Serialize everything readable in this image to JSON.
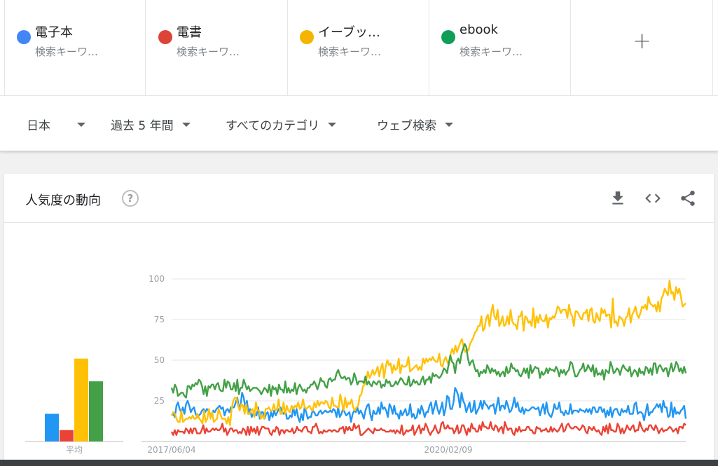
{
  "terms": [
    {
      "name": "電子本",
      "sub": "検索キーワ…",
      "color": "#4285f4"
    },
    {
      "name": "電書",
      "sub": "検索キーワ…",
      "color": "#db4437"
    },
    {
      "name": "イーブッ…",
      "sub": "検索キーワ…",
      "color": "#f4b400"
    },
    {
      "name": "ebook",
      "sub": "検索キーワ…",
      "color": "#0f9d58"
    }
  ],
  "add_term": {
    "icon": "plus-icon",
    "label": "+"
  },
  "filters": {
    "region": "日本",
    "period": "過去 5 年間",
    "category": "すべてのカテゴリ",
    "search_type": "ウェブ検索"
  },
  "card": {
    "title": "人気度の動向",
    "help_label": "?",
    "tools": [
      "download-icon",
      "embed-code-icon",
      "share-icon"
    ]
  },
  "chart_data": {
    "type": "line",
    "x_tick_labels": [
      "2017/06/04",
      "2020/02/09"
    ],
    "y_ticks": [
      25,
      50,
      75,
      100
    ],
    "ylim": [
      0,
      100
    ],
    "grid": true,
    "averages_label": "平均",
    "series": [
      {
        "name": "電子本",
        "color": "#2196f3",
        "average": 17,
        "values": [
          16,
          17,
          15,
          22,
          24,
          20,
          18,
          21,
          17,
          23,
          25,
          22,
          18,
          20,
          21,
          17,
          15,
          16,
          17,
          19,
          20,
          18,
          20,
          19,
          17,
          16,
          19,
          18,
          20,
          21,
          22,
          20,
          21,
          16,
          19,
          20,
          18,
          21,
          21,
          21,
          24,
          27,
          21,
          22,
          30,
          27,
          21,
          25,
          17,
          20,
          15,
          17,
          17,
          16,
          21,
          14,
          18,
          18,
          14,
          17,
          18,
          13,
          18,
          15,
          19,
          16,
          18,
          20,
          21,
          18,
          17,
          19,
          14,
          14,
          16,
          15,
          21,
          16,
          20,
          15,
          12,
          17,
          13,
          21,
          18,
          14,
          15,
          15,
          19,
          18,
          16,
          16,
          18,
          19,
          17,
          18,
          19,
          18,
          18,
          19,
          18,
          20,
          19,
          15,
          21,
          15,
          17,
          20,
          18,
          16,
          17,
          18,
          12,
          17,
          19,
          18,
          21,
          17,
          19,
          17,
          14,
          19,
          22,
          23,
          17,
          13,
          19,
          17,
          17,
          21,
          17,
          24,
          20,
          21,
          19,
          15,
          23,
          21,
          17,
          22,
          17,
          17,
          14,
          19,
          16,
          18,
          20,
          16,
          17,
          23,
          15,
          17,
          14,
          15,
          20,
          17,
          22,
          19,
          15,
          18,
          18,
          22,
          24,
          17,
          21,
          25,
          20,
          17,
          20,
          24,
          16,
          20,
          28,
          27,
          20,
          20,
          24,
          33,
          31,
          28,
          21,
          30,
          25,
          23,
          18,
          21,
          24,
          18,
          19,
          25,
          17,
          19,
          21,
          25,
          20,
          25,
          23,
          22,
          20,
          22,
          22,
          23,
          17,
          22,
          27,
          19,
          22,
          22,
          20,
          25,
          22,
          18,
          19,
          22,
          27,
          21,
          24,
          19,
          18,
          21,
          17,
          20,
          19,
          19,
          20,
          21,
          21,
          20,
          20,
          21,
          16,
          20,
          23,
          17,
          24,
          18,
          16,
          15,
          18,
          23,
          20,
          20,
          24,
          18,
          18,
          16,
          19,
          17,
          17,
          23,
          17,
          19,
          19,
          19,
          18,
          20,
          19,
          19,
          18,
          20,
          18,
          20,
          17,
          21,
          21,
          18,
          18,
          21,
          21,
          18,
          20,
          15,
          19,
          16,
          21,
          15,
          19,
          20,
          20,
          17,
          16,
          20,
          18,
          19,
          18,
          22,
          17,
          17,
          17,
          23,
          24,
          17,
          18,
          18,
          17,
          13,
          18,
          23,
          16,
          18,
          18,
          20,
          21,
          23,
          21,
          23,
          18,
          25,
          21,
          21,
          15,
          16,
          24,
          15,
          21,
          17,
          18,
          17,
          19,
          20,
          22,
          14
        ]
      },
      {
        "name": "電書",
        "color": "#ea4335",
        "average": 7,
        "values": [
          6,
          4,
          7,
          4,
          7,
          6,
          6,
          6,
          5,
          8,
          7,
          5,
          8,
          5,
          8,
          8,
          5,
          5,
          5,
          7,
          10,
          5,
          8,
          6,
          6,
          7,
          8,
          7,
          8,
          7,
          7,
          8,
          11,
          6,
          8,
          4,
          6,
          8,
          8,
          6,
          7,
          7,
          5,
          6,
          5,
          8,
          7,
          4,
          9,
          4,
          9,
          6,
          8,
          5,
          9,
          4,
          7,
          9,
          9,
          8,
          8,
          8,
          5,
          4,
          7,
          6,
          9,
          8,
          4,
          7,
          7,
          5,
          7,
          7,
          6,
          6,
          8,
          5,
          6,
          9,
          7,
          7,
          6,
          8,
          9,
          9,
          6,
          6,
          5,
          9,
          9,
          11,
          8,
          5,
          6,
          5,
          7,
          6,
          6,
          7,
          7,
          6,
          7,
          7,
          6,
          6,
          8,
          8,
          9,
          5,
          9,
          7,
          9,
          7,
          7,
          11,
          8,
          9,
          10,
          4,
          4,
          5,
          6,
          7,
          8,
          7,
          6,
          5,
          8,
          7,
          7,
          7,
          8,
          7,
          7,
          6,
          6,
          6,
          7,
          6,
          7,
          5,
          7,
          6,
          5,
          10,
          4,
          5,
          7,
          6,
          7,
          7,
          10,
          4,
          6,
          8,
          10,
          5,
          8,
          7,
          11,
          9,
          6,
          4,
          6,
          7,
          10,
          7,
          5,
          6,
          11,
          12,
          8,
          8,
          10,
          8,
          8,
          8,
          5,
          7,
          10,
          5,
          6,
          10,
          10,
          7,
          4,
          8,
          6,
          11,
          8,
          8,
          6,
          6,
          10,
          7,
          12,
          9,
          9,
          8,
          8,
          12,
          8,
          7,
          10,
          9,
          6,
          8,
          9,
          5,
          12,
          9,
          7,
          8,
          8,
          5,
          4,
          8,
          6,
          9,
          6,
          7,
          7,
          7,
          9,
          9,
          7,
          7,
          5,
          5,
          9,
          8,
          8,
          6,
          7,
          7,
          8,
          6,
          6,
          9,
          6,
          8,
          7,
          6,
          7,
          9,
          11,
          6,
          7,
          10,
          11,
          9,
          8,
          8,
          9,
          9,
          8,
          7,
          8,
          10,
          9,
          6,
          5,
          9,
          8,
          7,
          9,
          7,
          6,
          7,
          5,
          4,
          9,
          6,
          10,
          5,
          11,
          7,
          7,
          6,
          6,
          11,
          9,
          5,
          8,
          5,
          7,
          10,
          8,
          7,
          9,
          10,
          6,
          7,
          7,
          12,
          9,
          7,
          6,
          8,
          7,
          10,
          10,
          8,
          7,
          10,
          8,
          5,
          7,
          8,
          6,
          7,
          7,
          8,
          9,
          8,
          6,
          7,
          8,
          5,
          9,
          9,
          8,
          11,
          10
        ]
      },
      {
        "name": "イーブッ…",
        "color": "#ffc107",
        "average": 51,
        "values": [
          16,
          18,
          17,
          14,
          12,
          12,
          19,
          12,
          13,
          14,
          14,
          15,
          14,
          16,
          14,
          14,
          17,
          14,
          13,
          11,
          19,
          12,
          14,
          20,
          14,
          18,
          12,
          13,
          14,
          20,
          17,
          14,
          14,
          14,
          11,
          15,
          10,
          20,
          25,
          27,
          27,
          22,
          19,
          23,
          22,
          17,
          23,
          17,
          17,
          19,
          20,
          15,
          24,
          19,
          19,
          14,
          16,
          14,
          20,
          20,
          21,
          19,
          19,
          23,
          19,
          20,
          26,
          17,
          17,
          24,
          17,
          22,
          19,
          18,
          22,
          20,
          22,
          21,
          24,
          20,
          21,
          26,
          21,
          20,
          21,
          22,
          20,
          19,
          24,
          21,
          25,
          22,
          24,
          24,
          23,
          25,
          24,
          21,
          20,
          27,
          22,
          22,
          21,
          21,
          29,
          24,
          19,
          27,
          21,
          24,
          23,
          26,
          21,
          19,
          21,
          22,
          28,
          29,
          34,
          35,
          38,
          43,
          39,
          41,
          44,
          41,
          43,
          46,
          40,
          45,
          48,
          39,
          46,
          50,
          47,
          48,
          42,
          47,
          44,
          45,
          51,
          42,
          47,
          46,
          46,
          47,
          52,
          43,
          44,
          45,
          46,
          47,
          44,
          46,
          44,
          51,
          48,
          51,
          49,
          51,
          50,
          52,
          50,
          49,
          49,
          54,
          47,
          46,
          50,
          52,
          49,
          47,
          54,
          57,
          54,
          59,
          55,
          58,
          61,
          63,
          58,
          55,
          57,
          56,
          60,
          62,
          64,
          67,
          68,
          71,
          71,
          77,
          68,
          70,
          76,
          78,
          71,
          79,
          84,
          77,
          75,
          81,
          71,
          73,
          77,
          71,
          72,
          77,
          72,
          81,
          74,
          72,
          72,
          69,
          77,
          77,
          80,
          68,
          77,
          76,
          73,
          74,
          71,
          82,
          70,
          77,
          73,
          78,
          75,
          74,
          74,
          78,
          70,
          76,
          75,
          77,
          76,
          79,
          83,
          82,
          79,
          81,
          81,
          81,
          76,
          84,
          79,
          77,
          71,
          80,
          80,
          78,
          76,
          75,
          79,
          79,
          81,
          74,
          81,
          82,
          74,
          73,
          79,
          76,
          74,
          82,
          79,
          81,
          77,
          78,
          78,
          70,
          88,
          73,
          74,
          71,
          77,
          76,
          75,
          71,
          76,
          77,
          82,
          73,
          78,
          80,
          83,
          78,
          76,
          79,
          83,
          82,
          84,
          81,
          89,
          85,
          84,
          83,
          84,
          80,
          86,
          80,
          88,
          90,
          94,
          92,
          90,
          99,
          91,
          92,
          87,
          95,
          91,
          94,
          89,
          83,
          84,
          85
        ]
      },
      {
        "name": "ebook",
        "color": "#43a047",
        "average": 37,
        "values": [
          33,
          30,
          35,
          33,
          28,
          29,
          30,
          30,
          28,
          27,
          34,
          34,
          32,
          35,
          34,
          36,
          35,
          38,
          37,
          34,
          29,
          34,
          28,
          34,
          33,
          35,
          35,
          32,
          35,
          36,
          32,
          31,
          31,
          38,
          33,
          37,
          36,
          32,
          32,
          36,
          31,
          38,
          29,
          33,
          33,
          38,
          35,
          32,
          34,
          31,
          32,
          33,
          33,
          33,
          32,
          31,
          29,
          31,
          33,
          32,
          30,
          35,
          28,
          34,
          32,
          33,
          29,
          35,
          32,
          32,
          30,
          37,
          30,
          33,
          30,
          32,
          31,
          36,
          29,
          33,
          35,
          33,
          31,
          32,
          30,
          33,
          33,
          35,
          35,
          37,
          35,
          32,
          35,
          39,
          37,
          37,
          34,
          33,
          38,
          39,
          37,
          38,
          38,
          42,
          44,
          41,
          39,
          39,
          40,
          38,
          39,
          39,
          35,
          37,
          42,
          39,
          35,
          37,
          37,
          37,
          36,
          40,
          35,
          37,
          35,
          34,
          37,
          36,
          35,
          37,
          37,
          33,
          35,
          34,
          38,
          36,
          37,
          34,
          34,
          35,
          37,
          35,
          37,
          39,
          38,
          36,
          35,
          35,
          40,
          34,
          35,
          38,
          36,
          37,
          35,
          35,
          38,
          40,
          35,
          38,
          38,
          40,
          36,
          42,
          40,
          41,
          40,
          39,
          40,
          42,
          45,
          44,
          42,
          48,
          53,
          49,
          48,
          42,
          49,
          51,
          48,
          54,
          57,
          60,
          58,
          51,
          47,
          49,
          50,
          46,
          43,
          44,
          40,
          43,
          42,
          44,
          42,
          47,
          45,
          42,
          45,
          43,
          44,
          41,
          43,
          40,
          42,
          43,
          40,
          46,
          42,
          43,
          48,
          45,
          45,
          43,
          44,
          41,
          40,
          42,
          45,
          42,
          45,
          39,
          47,
          42,
          44,
          46,
          45,
          45,
          39,
          43,
          41,
          42,
          45,
          42,
          45,
          44,
          44,
          43,
          46,
          44,
          40,
          44,
          42,
          44,
          41,
          43,
          44,
          49,
          48,
          44,
          40,
          40,
          42,
          44,
          45,
          48,
          43,
          44,
          47,
          45,
          43,
          47,
          40,
          45,
          41,
          42,
          41,
          44,
          38,
          44,
          43,
          42,
          49,
          46,
          42,
          43,
          45,
          44,
          41,
          45,
          47,
          45,
          44,
          43,
          46,
          40,
          42,
          44,
          43,
          40,
          45,
          42,
          43,
          41,
          46,
          45,
          42,
          45,
          41,
          48,
          48,
          42,
          46,
          47,
          45,
          43,
          45,
          45,
          40,
          44,
          48,
          43,
          45,
          49,
          47,
          43,
          45,
          42,
          46,
          42
        ]
      }
    ]
  }
}
